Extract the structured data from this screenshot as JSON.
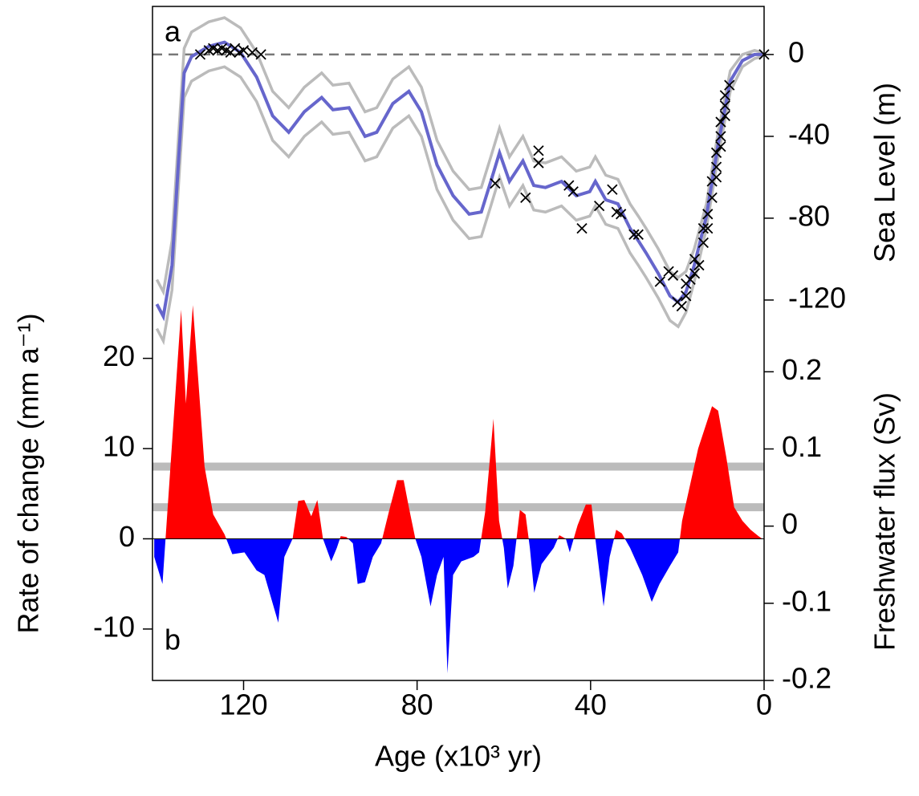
{
  "chart_data": [
    {
      "type": "line",
      "panel_label": "a",
      "ylabel": "Sea Level (m)",
      "ylim": [
        -142,
        23.5
      ],
      "yticks": [
        -120,
        -80,
        -40,
        0
      ],
      "reference_line": 0,
      "x": [
        140,
        138.5,
        136.5,
        135,
        133.7,
        132,
        128,
        124.4,
        120.7,
        117,
        113.3,
        109.6,
        106,
        102,
        99.4,
        95.7,
        92,
        89.3,
        85.6,
        81.9,
        79,
        75.4,
        71.7,
        68,
        65.2,
        63,
        61,
        58.7,
        55.6,
        53.1,
        50.4,
        46.7,
        43.3,
        40.2,
        38.9,
        36.5,
        33.7,
        30.9,
        29,
        27.2,
        24.4,
        21.7,
        19.8,
        18,
        16.1,
        13.3,
        10.6,
        7.8,
        5,
        2.2,
        0.4
      ],
      "series": [
        {
          "color": "#bbbbbb",
          "values": [
            -110,
            -116,
            -91,
            -40,
            3,
            11,
            16,
            18,
            13,
            1,
            -18,
            -26,
            -16,
            -9,
            -15,
            -14,
            -28,
            -26,
            -12,
            -6,
            -16,
            -42,
            -57,
            -66,
            -65,
            -50,
            -36,
            -50,
            -40,
            -52,
            -53,
            -50,
            -57,
            -55,
            -50,
            -59,
            -61,
            -73,
            -79,
            -85,
            -95,
            -106,
            -109,
            -106,
            -95,
            -73,
            -38,
            -8,
            0,
            2,
            1
          ]
        },
        {
          "color": "#bbbbbb",
          "values": [
            -134,
            -140,
            -115,
            -64,
            -21,
            -13,
            -8,
            -6,
            -11,
            -23,
            -42,
            -50,
            -40,
            -33,
            -39,
            -38,
            -52,
            -50,
            -36,
            -30,
            -40,
            -66,
            -81,
            -90,
            -89,
            -74,
            -60,
            -74,
            -64,
            -76,
            -77,
            -74,
            -81,
            -79,
            -74,
            -83,
            -85,
            -97,
            -103,
            -109,
            -119,
            -130,
            -133,
            -126,
            -111,
            -85,
            -50,
            -18,
            -6,
            -2,
            -1
          ]
        },
        {
          "color": "#6666cc",
          "values": [
            -122,
            -128,
            -103,
            -52,
            -9,
            -1,
            4,
            6,
            1,
            -11,
            -30,
            -38,
            -28,
            -21,
            -27,
            -26,
            -40,
            -38,
            -24,
            -18,
            -28,
            -54,
            -69,
            -78,
            -77,
            -62,
            -48,
            -62,
            -52,
            -64,
            -65,
            -62,
            -69,
            -67,
            -62,
            -71,
            -73,
            -85,
            -91,
            -97,
            -107,
            -118,
            -121,
            -116,
            -103,
            -79,
            -44,
            -13,
            -3,
            0,
            0
          ]
        }
      ],
      "points": {
        "color": "#000000",
        "x": [
          130,
          128,
          127,
          126,
          125,
          124,
          123,
          122,
          121,
          120,
          118,
          116,
          62,
          55,
          52,
          52,
          45,
          44,
          42,
          38,
          35,
          34,
          33,
          30,
          29,
          24,
          22,
          21,
          20,
          19,
          18,
          18,
          17,
          16,
          16,
          15,
          14,
          14,
          13,
          13,
          12,
          12,
          11,
          11,
          11,
          10,
          10,
          10,
          9,
          9,
          9,
          8,
          0
        ],
        "y": [
          0,
          2,
          3,
          2,
          3,
          2,
          1,
          3,
          1,
          2,
          1,
          0,
          -63,
          -70,
          -47,
          -53,
          -64,
          -67,
          -85,
          -74,
          -66,
          -77,
          -78,
          -88,
          -88,
          -111,
          -106,
          -108,
          -121,
          -123,
          -118,
          -112,
          -110,
          -107,
          -100,
          -103,
          -92,
          -85,
          -85,
          -78,
          -70,
          -62,
          -55,
          -48,
          -60,
          -40,
          -33,
          -45,
          -25,
          -20,
          -30,
          -15,
          0
        ]
      }
    },
    {
      "type": "area",
      "panel_label": "b",
      "ylabel": "Rate of change (mm a⁻¹)",
      "y2label": "Freshwater flux (Sv)",
      "xlabel": "Age (x10³ yr)",
      "xlim": [
        141,
        0
      ],
      "xticks": [
        120,
        80,
        40,
        0
      ],
      "ylim": [
        -15.7,
        24.5
      ],
      "yticks": [
        -10,
        0,
        10,
        20
      ],
      "y2lim": [
        -0.2,
        0.27
      ],
      "y2ticks": [
        -0.2,
        -0.1,
        0,
        0.1,
        0.2
      ],
      "reference_lines": [
        8,
        3.5
      ],
      "reference_color": "#bbbbbb",
      "color": "#ff0000",
      "negative_color": "#0000ff",
      "x": [
        140.6,
        138.7,
        134.4,
        133.3,
        131.7,
        129,
        127,
        124.4,
        122.6,
        119.8,
        117,
        115.2,
        112,
        110.6,
        108.7,
        107.4,
        106,
        104.4,
        103,
        101.7,
        99.8,
        98.5,
        97.6,
        96.3,
        94.8,
        93.7,
        92,
        90.2,
        88.3,
        86.5,
        84.6,
        83.1,
        81.9,
        80.4,
        79,
        76.9,
        75.4,
        73.9,
        73,
        71.7,
        69.8,
        67,
        65.7,
        64.3,
        62.4,
        61.1,
        60,
        59.1,
        57.8,
        56.3,
        55,
        54,
        53,
        51.3,
        48.5,
        47.2,
        45.7,
        44.8,
        43,
        41.1,
        39.8,
        38.9,
        37,
        35.6,
        34.1,
        32.8,
        30.9,
        28.1,
        25.9,
        24.1,
        21.7,
        19.8,
        18.9,
        15.2,
        12,
        10.6,
        8.7,
        6.9,
        5,
        3.1,
        1.3,
        0.4
      ],
      "values": [
        -2,
        -5,
        25.4,
        15,
        25.9,
        8,
        2.7,
        0.5,
        -1.7,
        -1.5,
        -3.5,
        -4,
        -9.3,
        -2,
        0,
        4.2,
        4.3,
        2.5,
        4.3,
        0,
        -2.5,
        -1,
        0.3,
        0.2,
        -0.5,
        -5,
        -4.8,
        -2,
        -0.5,
        3,
        6.5,
        6.5,
        3.5,
        0,
        -2,
        -7.5,
        -4,
        -2,
        -14.9,
        -4,
        -2.5,
        -2,
        -1.5,
        3,
        13.3,
        2,
        -1,
        -5.5,
        -3,
        3.2,
        2.7,
        -1,
        -6,
        -2.8,
        -1,
        0.4,
        0,
        -1.5,
        1.5,
        3.8,
        3.8,
        0,
        -7.5,
        -2,
        1,
        0.6,
        -1,
        -4,
        -7,
        -5,
        -3,
        -1.5,
        2,
        10,
        14.7,
        14.2,
        9,
        3.5,
        2,
        1,
        0.3,
        0
      ]
    }
  ]
}
